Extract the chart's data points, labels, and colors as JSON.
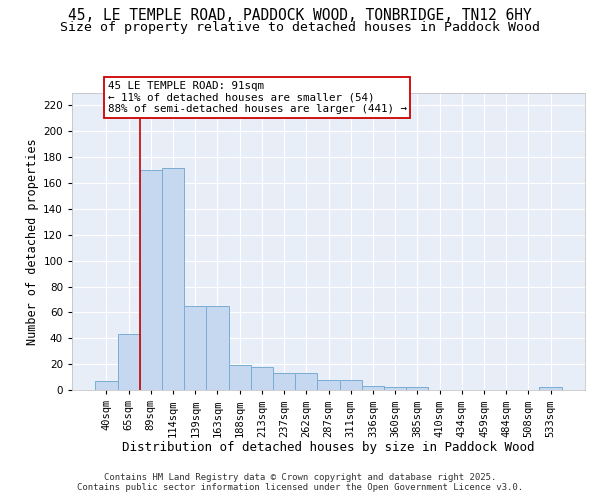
{
  "title_line1": "45, LE TEMPLE ROAD, PADDOCK WOOD, TONBRIDGE, TN12 6HY",
  "title_line2": "Size of property relative to detached houses in Paddock Wood",
  "xlabel": "Distribution of detached houses by size in Paddock Wood",
  "ylabel": "Number of detached properties",
  "categories": [
    "40sqm",
    "65sqm",
    "89sqm",
    "114sqm",
    "139sqm",
    "163sqm",
    "188sqm",
    "213sqm",
    "237sqm",
    "262sqm",
    "287sqm",
    "311sqm",
    "336sqm",
    "360sqm",
    "385sqm",
    "410sqm",
    "434sqm",
    "459sqm",
    "484sqm",
    "508sqm",
    "533sqm"
  ],
  "values": [
    7,
    43,
    170,
    172,
    65,
    65,
    19,
    18,
    13,
    13,
    8,
    8,
    3,
    2,
    2,
    0,
    0,
    0,
    0,
    0,
    2
  ],
  "bar_color": "#c5d8f0",
  "bar_edge_color": "#7aadd4",
  "red_line_index": 2,
  "red_line_color": "#cc0000",
  "annotation_text": "45 LE TEMPLE ROAD: 91sqm\n← 11% of detached houses are smaller (54)\n88% of semi-detached houses are larger (441) →",
  "annotation_box_color": "#ffffff",
  "annotation_box_edge": "#cc0000",
  "ylim": [
    0,
    230
  ],
  "yticks": [
    0,
    20,
    40,
    60,
    80,
    100,
    120,
    140,
    160,
    180,
    200,
    220
  ],
  "bg_color": "#e8eef8",
  "grid_color": "#ffffff",
  "footer": "Contains HM Land Registry data © Crown copyright and database right 2025.\nContains public sector information licensed under the Open Government Licence v3.0.",
  "title_fontsize": 10.5,
  "subtitle_fontsize": 9.5,
  "xlabel_fontsize": 9,
  "ylabel_fontsize": 8.5,
  "tick_fontsize": 7.5,
  "footer_fontsize": 6.5,
  "ann_fontsize": 7.8
}
